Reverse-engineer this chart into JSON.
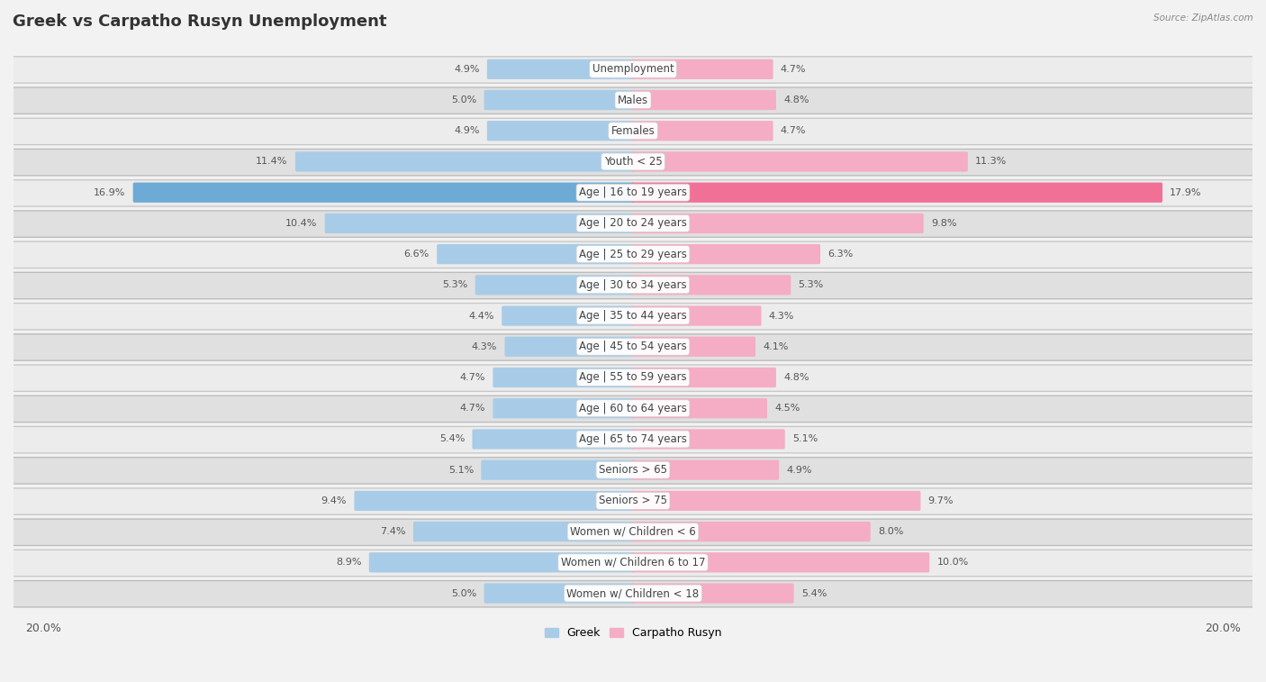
{
  "title": "Greek vs Carpatho Rusyn Unemployment",
  "source": "Source: ZipAtlas.com",
  "categories": [
    "Unemployment",
    "Males",
    "Females",
    "Youth < 25",
    "Age | 16 to 19 years",
    "Age | 20 to 24 years",
    "Age | 25 to 29 years",
    "Age | 30 to 34 years",
    "Age | 35 to 44 years",
    "Age | 45 to 54 years",
    "Age | 55 to 59 years",
    "Age | 60 to 64 years",
    "Age | 65 to 74 years",
    "Seniors > 65",
    "Seniors > 75",
    "Women w/ Children < 6",
    "Women w/ Children 6 to 17",
    "Women w/ Children < 18"
  ],
  "greek_values": [
    4.9,
    5.0,
    4.9,
    11.4,
    16.9,
    10.4,
    6.6,
    5.3,
    4.4,
    4.3,
    4.7,
    4.7,
    5.4,
    5.1,
    9.4,
    7.4,
    8.9,
    5.0
  ],
  "rusyn_values": [
    4.7,
    4.8,
    4.7,
    11.3,
    17.9,
    9.8,
    6.3,
    5.3,
    4.3,
    4.1,
    4.8,
    4.5,
    5.1,
    4.9,
    9.7,
    8.0,
    10.0,
    5.4
  ],
  "greek_color": "#a8cce8",
  "rusyn_color": "#f4adc4",
  "highlight_greek_color": "#6eaad6",
  "highlight_rusyn_color": "#f07098",
  "max_val": 20.0,
  "bg_color": "#f2f2f2",
  "row_light": "#e8e8e8",
  "row_dark": "#d8d8d8",
  "title_fontsize": 13,
  "label_fontsize": 8.5,
  "value_fontsize": 8
}
